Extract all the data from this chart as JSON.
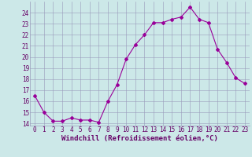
{
  "x": [
    0,
    1,
    2,
    3,
    4,
    5,
    6,
    7,
    8,
    9,
    10,
    11,
    12,
    13,
    14,
    15,
    16,
    17,
    18,
    19,
    20,
    21,
    22,
    23
  ],
  "y": [
    16.5,
    15.0,
    14.2,
    14.2,
    14.5,
    14.3,
    14.3,
    14.1,
    16.0,
    17.5,
    19.8,
    21.1,
    22.0,
    23.1,
    23.1,
    23.4,
    23.6,
    24.5,
    23.4,
    23.1,
    20.7,
    19.5,
    18.1,
    17.6
  ],
  "line_color": "#990099",
  "marker": "D",
  "marker_size": 2.0,
  "bg_color": "#cce8e8",
  "grid_color": "#9999bb",
  "xlabel": "Windchill (Refroidissement éolien,°C)",
  "xlabel_color": "#660066",
  "ylim": [
    13.8,
    25.0
  ],
  "xlim": [
    -0.5,
    23.5
  ],
  "yticks": [
    14,
    15,
    16,
    17,
    18,
    19,
    20,
    21,
    22,
    23,
    24
  ],
  "xticks": [
    0,
    1,
    2,
    3,
    4,
    5,
    6,
    7,
    8,
    9,
    10,
    11,
    12,
    13,
    14,
    15,
    16,
    17,
    18,
    19,
    20,
    21,
    22,
    23
  ],
  "tick_label_color": "#660066",
  "tick_label_size": 5.5,
  "xlabel_size": 6.5,
  "line_width": 0.8,
  "spine_color": "#9999bb"
}
